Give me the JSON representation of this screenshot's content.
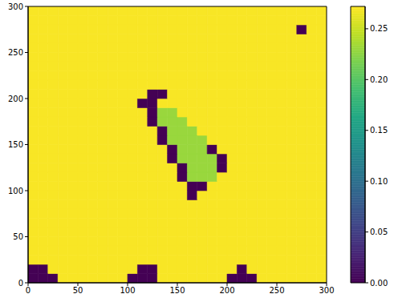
{
  "chart_data": {
    "type": "heatmap",
    "xlim": [
      0,
      300
    ],
    "ylim": [
      0,
      300
    ],
    "xticks": [
      0,
      50,
      100,
      150,
      200,
      250,
      300
    ],
    "yticks": [
      0,
      50,
      100,
      150,
      200,
      250,
      300
    ],
    "xbins": [
      0,
      10,
      20,
      30,
      40,
      50,
      60,
      70,
      80,
      90,
      100,
      110,
      120,
      130,
      140,
      150,
      160,
      170,
      180,
      190,
      200,
      210,
      220,
      230,
      240,
      250,
      260,
      270,
      280,
      290,
      300
    ],
    "ybins": [
      0,
      10,
      20,
      30,
      40,
      50,
      60,
      70,
      80,
      90,
      100,
      110,
      120,
      130,
      140,
      150,
      160,
      170,
      180,
      190,
      200,
      210,
      220,
      230,
      240,
      250,
      260,
      270,
      280,
      290,
      300
    ],
    "colorbar": {
      "range": [
        0,
        0.272
      ],
      "ticks": [
        {
          "value": 0,
          "label": "0.00"
        },
        {
          "value": 0.05,
          "label": "0.05"
        },
        {
          "value": 0.1,
          "label": "0.10"
        },
        {
          "value": 0.15,
          "label": "0.15"
        },
        {
          "value": 0.2,
          "label": "0.20"
        },
        {
          "value": 0.25,
          "label": "0.25"
        }
      ]
    },
    "cells": [
      [
        0,
        0,
        0,
        0.27,
        0.27,
        0.27,
        0.27,
        0.27,
        0.27,
        0.27,
        0,
        0,
        0,
        0.27,
        0.27,
        0.27,
        0.27,
        0.27,
        0.27,
        0.27,
        0,
        0,
        0,
        0.27,
        0.27,
        0.27,
        0.27,
        0.27,
        0.27,
        0.27
      ],
      [
        0,
        0,
        0.27,
        0.27,
        0.27,
        0.27,
        0.27,
        0.27,
        0.27,
        0.27,
        0.27,
        0,
        0,
        0.27,
        0.27,
        0.27,
        0.27,
        0.27,
        0.27,
        0.27,
        0.27,
        0,
        0.27,
        0.27,
        0.27,
        0.27,
        0.27,
        0.27,
        0.27,
        0.27
      ],
      [
        0.27,
        0.27,
        0.27,
        0.27,
        0.27,
        0.27,
        0.27,
        0.27,
        0.27,
        0.27,
        0.27,
        0.27,
        0.27,
        0.27,
        0.27,
        0.27,
        0.27,
        0.27,
        0.27,
        0.27,
        0.27,
        0.27,
        0.27,
        0.27,
        0.27,
        0.27,
        0.27,
        0.27,
        0.27,
        0.27
      ],
      [
        0.27,
        0.27,
        0.27,
        0.27,
        0.27,
        0.27,
        0.27,
        0.27,
        0.27,
        0.27,
        0.27,
        0.27,
        0.27,
        0.27,
        0.27,
        0.27,
        0.27,
        0.27,
        0.27,
        0.27,
        0.27,
        0.27,
        0.27,
        0.27,
        0.27,
        0.27,
        0.27,
        0.27,
        0.27,
        0.27
      ],
      [
        0.27,
        0.27,
        0.27,
        0.27,
        0.27,
        0.27,
        0.27,
        0.27,
        0.27,
        0.27,
        0.27,
        0.27,
        0.27,
        0.27,
        0.27,
        0.27,
        0.27,
        0.27,
        0.27,
        0.27,
        0.27,
        0.27,
        0.27,
        0.27,
        0.27,
        0.27,
        0.27,
        0.27,
        0.27,
        0.27
      ],
      [
        0.27,
        0.27,
        0.27,
        0.27,
        0.27,
        0.27,
        0.27,
        0.27,
        0.27,
        0.27,
        0.27,
        0.27,
        0.27,
        0.27,
        0.27,
        0.27,
        0.27,
        0.27,
        0.27,
        0.27,
        0.27,
        0.27,
        0.27,
        0.27,
        0.27,
        0.27,
        0.27,
        0.27,
        0.27,
        0.27
      ],
      [
        0.27,
        0.27,
        0.27,
        0.27,
        0.27,
        0.27,
        0.27,
        0.27,
        0.27,
        0.27,
        0.27,
        0.27,
        0.27,
        0.27,
        0.27,
        0.27,
        0.27,
        0.27,
        0.27,
        0.27,
        0.27,
        0.27,
        0.27,
        0.27,
        0.27,
        0.27,
        0.27,
        0.27,
        0.27,
        0.27
      ],
      [
        0.27,
        0.27,
        0.27,
        0.27,
        0.27,
        0.27,
        0.27,
        0.27,
        0.27,
        0.27,
        0.27,
        0.27,
        0.27,
        0.27,
        0.27,
        0.27,
        0.27,
        0.27,
        0.27,
        0.27,
        0.27,
        0.27,
        0.27,
        0.27,
        0.27,
        0.27,
        0.27,
        0.27,
        0.27,
        0.27
      ],
      [
        0.27,
        0.27,
        0.27,
        0.27,
        0.27,
        0.27,
        0.27,
        0.27,
        0.27,
        0.27,
        0.27,
        0.27,
        0.27,
        0.27,
        0.27,
        0.27,
        0.27,
        0.27,
        0.27,
        0.27,
        0.27,
        0.27,
        0.27,
        0.27,
        0.27,
        0.27,
        0.27,
        0.27,
        0.27,
        0.27
      ],
      [
        0.27,
        0.27,
        0.27,
        0.27,
        0.27,
        0.27,
        0.27,
        0.27,
        0.27,
        0.27,
        0.27,
        0.27,
        0.27,
        0.27,
        0.27,
        0.27,
        0,
        0.27,
        0.27,
        0.27,
        0.27,
        0.27,
        0.27,
        0.27,
        0.27,
        0.27,
        0.27,
        0.27,
        0.27,
        0.27
      ],
      [
        0.27,
        0.27,
        0.27,
        0.27,
        0.27,
        0.27,
        0.27,
        0.27,
        0.27,
        0.27,
        0.27,
        0.27,
        0.27,
        0.27,
        0.27,
        0.27,
        0,
        0,
        0.27,
        0.27,
        0.27,
        0.27,
        0.27,
        0.27,
        0.27,
        0.27,
        0.27,
        0.27,
        0.27,
        0.27
      ],
      [
        0.27,
        0.27,
        0.27,
        0.27,
        0.27,
        0.27,
        0.27,
        0.27,
        0.27,
        0.27,
        0.27,
        0.27,
        0.27,
        0.27,
        0.27,
        0,
        0.23,
        0.23,
        0.23,
        0.27,
        0.27,
        0.27,
        0.27,
        0.27,
        0.27,
        0.27,
        0.27,
        0.27,
        0.27,
        0.27
      ],
      [
        0.27,
        0.27,
        0.27,
        0.27,
        0.27,
        0.27,
        0.27,
        0.27,
        0.27,
        0.27,
        0.27,
        0.27,
        0.27,
        0.27,
        0.27,
        0,
        0.23,
        0.23,
        0.23,
        0,
        0.27,
        0.27,
        0.27,
        0.27,
        0.27,
        0.27,
        0.27,
        0.27,
        0.27,
        0.27
      ],
      [
        0.27,
        0.27,
        0.27,
        0.27,
        0.27,
        0.27,
        0.27,
        0.27,
        0.27,
        0.27,
        0.27,
        0.27,
        0.27,
        0.27,
        0,
        0.23,
        0.23,
        0.23,
        0.23,
        0,
        0.27,
        0.27,
        0.27,
        0.27,
        0.27,
        0.27,
        0.27,
        0.27,
        0.27,
        0.27
      ],
      [
        0.27,
        0.27,
        0.27,
        0.27,
        0.27,
        0.27,
        0.27,
        0.27,
        0.27,
        0.27,
        0.27,
        0.27,
        0.27,
        0.27,
        0,
        0.23,
        0.23,
        0.23,
        0,
        0.27,
        0.27,
        0.27,
        0.27,
        0.27,
        0.27,
        0.27,
        0.27,
        0.27,
        0.27,
        0.27
      ],
      [
        0.27,
        0.27,
        0.27,
        0.27,
        0.27,
        0.27,
        0.27,
        0.27,
        0.27,
        0.27,
        0.27,
        0.27,
        0.27,
        0,
        0.23,
        0.23,
        0.23,
        0.23,
        0.27,
        0.27,
        0.27,
        0.27,
        0.27,
        0.27,
        0.27,
        0.27,
        0.27,
        0.27,
        0.27,
        0.27
      ],
      [
        0.27,
        0.27,
        0.27,
        0.27,
        0.27,
        0.27,
        0.27,
        0.27,
        0.27,
        0.27,
        0.27,
        0.27,
        0.27,
        0,
        0.23,
        0.23,
        0.23,
        0.27,
        0.27,
        0.27,
        0.27,
        0.27,
        0.27,
        0.27,
        0.27,
        0.27,
        0.27,
        0.27,
        0.27,
        0.27
      ],
      [
        0.27,
        0.27,
        0.27,
        0.27,
        0.27,
        0.27,
        0.27,
        0.27,
        0.27,
        0.27,
        0.27,
        0.27,
        0,
        0.23,
        0.23,
        0.23,
        0.27,
        0.27,
        0.27,
        0.27,
        0.27,
        0.27,
        0.27,
        0.27,
        0.27,
        0.27,
        0.27,
        0.27,
        0.27,
        0.27
      ],
      [
        0.27,
        0.27,
        0.27,
        0.27,
        0.27,
        0.27,
        0.27,
        0.27,
        0.27,
        0.27,
        0.27,
        0.27,
        0,
        0.23,
        0.23,
        0.27,
        0.27,
        0.27,
        0.27,
        0.27,
        0.27,
        0.27,
        0.27,
        0.27,
        0.27,
        0.27,
        0.27,
        0.27,
        0.27,
        0.27
      ],
      [
        0.27,
        0.27,
        0.27,
        0.27,
        0.27,
        0.27,
        0.27,
        0.27,
        0.27,
        0.27,
        0.27,
        0,
        0,
        0.27,
        0.27,
        0.27,
        0.27,
        0.27,
        0.27,
        0.27,
        0.27,
        0.27,
        0.27,
        0.27,
        0.27,
        0.27,
        0.27,
        0.27,
        0.27,
        0.27
      ],
      [
        0.27,
        0.27,
        0.27,
        0.27,
        0.27,
        0.27,
        0.27,
        0.27,
        0.27,
        0.27,
        0.27,
        0.27,
        0,
        0,
        0.27,
        0.27,
        0.27,
        0.27,
        0.27,
        0.27,
        0.27,
        0.27,
        0.27,
        0.27,
        0.27,
        0.27,
        0.27,
        0.27,
        0.27,
        0.27
      ],
      [
        0.27,
        0.27,
        0.27,
        0.27,
        0.27,
        0.27,
        0.27,
        0.27,
        0.27,
        0.27,
        0.27,
        0.27,
        0.27,
        0.27,
        0.27,
        0.27,
        0.27,
        0.27,
        0.27,
        0.27,
        0.27,
        0.27,
        0.27,
        0.27,
        0.27,
        0.27,
        0.27,
        0.27,
        0.27,
        0.27
      ],
      [
        0.27,
        0.27,
        0.27,
        0.27,
        0.27,
        0.27,
        0.27,
        0.27,
        0.27,
        0.27,
        0.27,
        0.27,
        0.27,
        0.27,
        0.27,
        0.27,
        0.27,
        0.27,
        0.27,
        0.27,
        0.27,
        0.27,
        0.27,
        0.27,
        0.27,
        0.27,
        0.27,
        0.27,
        0.27,
        0.27
      ],
      [
        0.27,
        0.27,
        0.27,
        0.27,
        0.27,
        0.27,
        0.27,
        0.27,
        0.27,
        0.27,
        0.27,
        0.27,
        0.27,
        0.27,
        0.27,
        0.27,
        0.27,
        0.27,
        0.27,
        0.27,
        0.27,
        0.27,
        0.27,
        0.27,
        0.27,
        0.27,
        0.27,
        0.27,
        0.27,
        0.27
      ],
      [
        0.27,
        0.27,
        0.27,
        0.27,
        0.27,
        0.27,
        0.27,
        0.27,
        0.27,
        0.27,
        0.27,
        0.27,
        0.27,
        0.27,
        0.27,
        0.27,
        0.27,
        0.27,
        0.27,
        0.27,
        0.27,
        0.27,
        0.27,
        0.27,
        0.27,
        0.27,
        0.27,
        0.27,
        0.27,
        0.27
      ],
      [
        0.27,
        0.27,
        0.27,
        0.27,
        0.27,
        0.27,
        0.27,
        0.27,
        0.27,
        0.27,
        0.27,
        0.27,
        0.27,
        0.27,
        0.27,
        0.27,
        0.27,
        0.27,
        0.27,
        0.27,
        0.27,
        0.27,
        0.27,
        0.27,
        0.27,
        0.27,
        0.27,
        0.27,
        0.27,
        0.27
      ],
      [
        0.27,
        0.27,
        0.27,
        0.27,
        0.27,
        0.27,
        0.27,
        0.27,
        0.27,
        0.27,
        0.27,
        0.27,
        0.27,
        0.27,
        0.27,
        0.27,
        0.27,
        0.27,
        0.27,
        0.27,
        0.27,
        0.27,
        0.27,
        0.27,
        0.27,
        0.27,
        0.27,
        0.27,
        0.27,
        0.27
      ],
      [
        0.27,
        0.27,
        0.27,
        0.27,
        0.27,
        0.27,
        0.27,
        0.27,
        0.27,
        0.27,
        0.27,
        0.27,
        0.27,
        0.27,
        0.27,
        0.27,
        0.27,
        0.27,
        0.27,
        0.27,
        0.27,
        0.27,
        0.27,
        0.27,
        0.27,
        0.27,
        0.27,
        0,
        0.27,
        0.27
      ],
      [
        0.27,
        0.27,
        0.27,
        0.27,
        0.27,
        0.27,
        0.27,
        0.27,
        0.27,
        0.27,
        0.27,
        0.27,
        0.27,
        0.27,
        0.27,
        0.27,
        0.27,
        0.27,
        0.27,
        0.27,
        0.27,
        0.27,
        0.27,
        0.27,
        0.27,
        0.27,
        0.27,
        0.27,
        0.27,
        0.27
      ],
      [
        0.27,
        0.27,
        0.27,
        0.27,
        0.27,
        0.27,
        0.27,
        0.27,
        0.27,
        0.27,
        0.27,
        0.27,
        0.27,
        0.27,
        0.27,
        0.27,
        0.27,
        0.27,
        0.27,
        0.27,
        0.27,
        0.27,
        0.27,
        0.27,
        0.27,
        0.27,
        0.27,
        0.27,
        0.27,
        0.27
      ]
    ]
  }
}
